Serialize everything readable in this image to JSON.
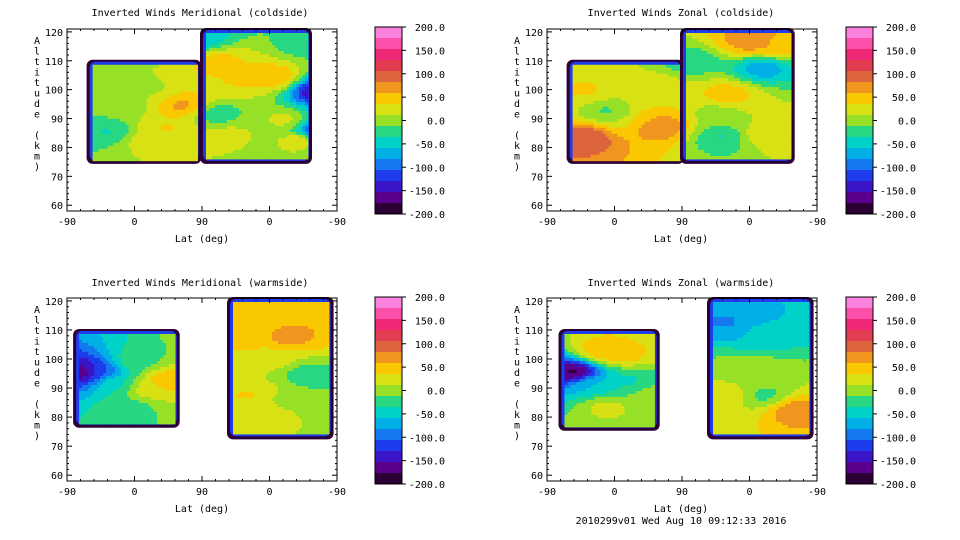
{
  "footer": "2010299v01 Wed Aug 10 09:12:33 2016",
  "chart_data": [
    {
      "type": "heatmap",
      "title": "Inverted Winds Meridional (coldside)",
      "xlabel": "Lat (deg)",
      "ylabel": "Altitude (km)",
      "x_ticks": [
        "-90",
        "0",
        "90",
        "0",
        "-90"
      ],
      "y_ticks": [
        60,
        70,
        80,
        90,
        100,
        110,
        120
      ],
      "ylim": [
        58,
        121
      ],
      "colorbar": {
        "range": [
          -200,
          200
        ],
        "ticks": [
          "200.0",
          "150.0",
          "100.0",
          "50.0",
          "0.0",
          "-50.0",
          "-100.0",
          "-150.0",
          "-200.0"
        ]
      },
      "blobs": [
        {
          "x": 0.93,
          "y": 86,
          "v": -180
        },
        {
          "x": 0.93,
          "y": 100,
          "v": -170
        },
        {
          "x": 0.15,
          "y": 86,
          "v": -40
        },
        {
          "x": 0.22,
          "y": 95,
          "v": 0
        },
        {
          "x": 0.36,
          "y": 87,
          "v": 40
        },
        {
          "x": 0.42,
          "y": 95,
          "v": 70
        },
        {
          "x": 0.31,
          "y": 101,
          "v": 10
        },
        {
          "x": 0.28,
          "y": 83,
          "v": 20
        },
        {
          "x": 0.55,
          "y": 92,
          "v": -30
        },
        {
          "x": 0.55,
          "y": 110,
          "v": 50
        },
        {
          "x": 0.64,
          "y": 104,
          "v": 40
        },
        {
          "x": 0.59,
          "y": 85,
          "v": 20
        },
        {
          "x": 0.76,
          "y": 105,
          "v": 60
        },
        {
          "x": 0.8,
          "y": 90,
          "v": 20
        },
        {
          "x": 0.86,
          "y": 116,
          "v": -20
        },
        {
          "x": 0.86,
          "y": 83,
          "v": 40
        },
        {
          "x": 0.48,
          "y": 118,
          "v": -60
        }
      ]
    },
    {
      "type": "heatmap",
      "title": "Inverted Winds Zonal (coldside)",
      "xlabel": "Lat (deg)",
      "ylabel": "Altitude (km)",
      "x_ticks": [
        "-90",
        "0",
        "90",
        "0",
        "-90"
      ],
      "y_ticks": [
        60,
        70,
        80,
        90,
        100,
        110,
        120
      ],
      "ylim": [
        58,
        121
      ],
      "colorbar": {
        "range": [
          -200,
          200
        ],
        "ticks": [
          "200.0",
          "150.0",
          "100.0",
          "50.0",
          "0.0",
          "-50.0",
          "-100.0",
          "-150.0",
          "-200.0"
        ]
      },
      "blobs": [
        {
          "x": 0.14,
          "y": 84,
          "v": 110
        },
        {
          "x": 0.14,
          "y": 100,
          "v": 40
        },
        {
          "x": 0.22,
          "y": 93,
          "v": -20
        },
        {
          "x": 0.29,
          "y": 92,
          "v": 0
        },
        {
          "x": 0.34,
          "y": 91,
          "v": 60
        },
        {
          "x": 0.41,
          "y": 88,
          "v": 90
        },
        {
          "x": 0.41,
          "y": 101,
          "v": 30
        },
        {
          "x": 0.53,
          "y": 110,
          "v": -30
        },
        {
          "x": 0.62,
          "y": 92,
          "v": 0
        },
        {
          "x": 0.66,
          "y": 99,
          "v": 50
        },
        {
          "x": 0.75,
          "y": 117,
          "v": 80
        },
        {
          "x": 0.85,
          "y": 116,
          "v": 60
        },
        {
          "x": 0.79,
          "y": 108,
          "v": -80
        },
        {
          "x": 0.8,
          "y": 85,
          "v": 30
        },
        {
          "x": 0.64,
          "y": 84,
          "v": -40
        }
      ]
    },
    {
      "type": "heatmap",
      "title": "Inverted Winds Meridional (warmside)",
      "xlabel": "Lat (deg)",
      "ylabel": "Altitude (km)",
      "x_ticks": [
        "-90",
        "0",
        "90",
        "0",
        "-90"
      ],
      "y_ticks": [
        60,
        70,
        80,
        90,
        100,
        110,
        120
      ],
      "ylim": [
        58,
        121
      ],
      "colorbar": {
        "range": [
          -200,
          200
        ],
        "ticks": [
          "200.0",
          "150.0",
          "100.0",
          "50.0",
          "0.0",
          "-50.0",
          "-100.0",
          "-150.0",
          "-200.0"
        ]
      },
      "blobs": [
        {
          "x": 0.05,
          "y": 96,
          "v": -200
        },
        {
          "x": 0.1,
          "y": 96,
          "v": -120
        },
        {
          "x": 0.17,
          "y": 92,
          "v": -40
        },
        {
          "x": 0.25,
          "y": 100,
          "v": -20
        },
        {
          "x": 0.3,
          "y": 90,
          "v": 30
        },
        {
          "x": 0.36,
          "y": 93,
          "v": 60
        },
        {
          "x": 0.24,
          "y": 84,
          "v": -20
        },
        {
          "x": 0.66,
          "y": 110,
          "v": 60
        },
        {
          "x": 0.71,
          "y": 118,
          "v": 40
        },
        {
          "x": 0.82,
          "y": 108,
          "v": 70
        },
        {
          "x": 0.76,
          "y": 100,
          "v": 20
        },
        {
          "x": 0.67,
          "y": 88,
          "v": 40
        },
        {
          "x": 0.78,
          "y": 87,
          "v": 10
        },
        {
          "x": 0.88,
          "y": 95,
          "v": -30
        }
      ]
    },
    {
      "type": "heatmap",
      "title": "Inverted Winds Zonal (warmside)",
      "xlabel": "Lat (deg)",
      "ylabel": "Altitude (km)",
      "x_ticks": [
        "-90",
        "0",
        "90",
        "0",
        "-90"
      ],
      "y_ticks": [
        60,
        70,
        80,
        90,
        100,
        110,
        120
      ],
      "ylim": [
        58,
        121
      ],
      "colorbar": {
        "range": [
          -200,
          200
        ],
        "ticks": [
          "200.0",
          "150.0",
          "100.0",
          "50.0",
          "0.0",
          "-50.0",
          "-100.0",
          "-150.0",
          "-200.0"
        ]
      },
      "blobs": [
        {
          "x": 0.1,
          "y": 96,
          "v": -200
        },
        {
          "x": 0.16,
          "y": 92,
          "v": -60
        },
        {
          "x": 0.2,
          "y": 103,
          "v": 60
        },
        {
          "x": 0.28,
          "y": 102,
          "v": 50
        },
        {
          "x": 0.22,
          "y": 84,
          "v": 20
        },
        {
          "x": 0.3,
          "y": 93,
          "v": -40
        },
        {
          "x": 0.38,
          "y": 88,
          "v": 0
        },
        {
          "x": 0.66,
          "y": 113,
          "v": -90
        },
        {
          "x": 0.78,
          "y": 110,
          "v": -60
        },
        {
          "x": 0.74,
          "y": 97,
          "v": 0
        },
        {
          "x": 0.66,
          "y": 88,
          "v": 30
        },
        {
          "x": 0.8,
          "y": 88,
          "v": -20
        },
        {
          "x": 0.91,
          "y": 83,
          "v": 80
        }
      ]
    }
  ]
}
